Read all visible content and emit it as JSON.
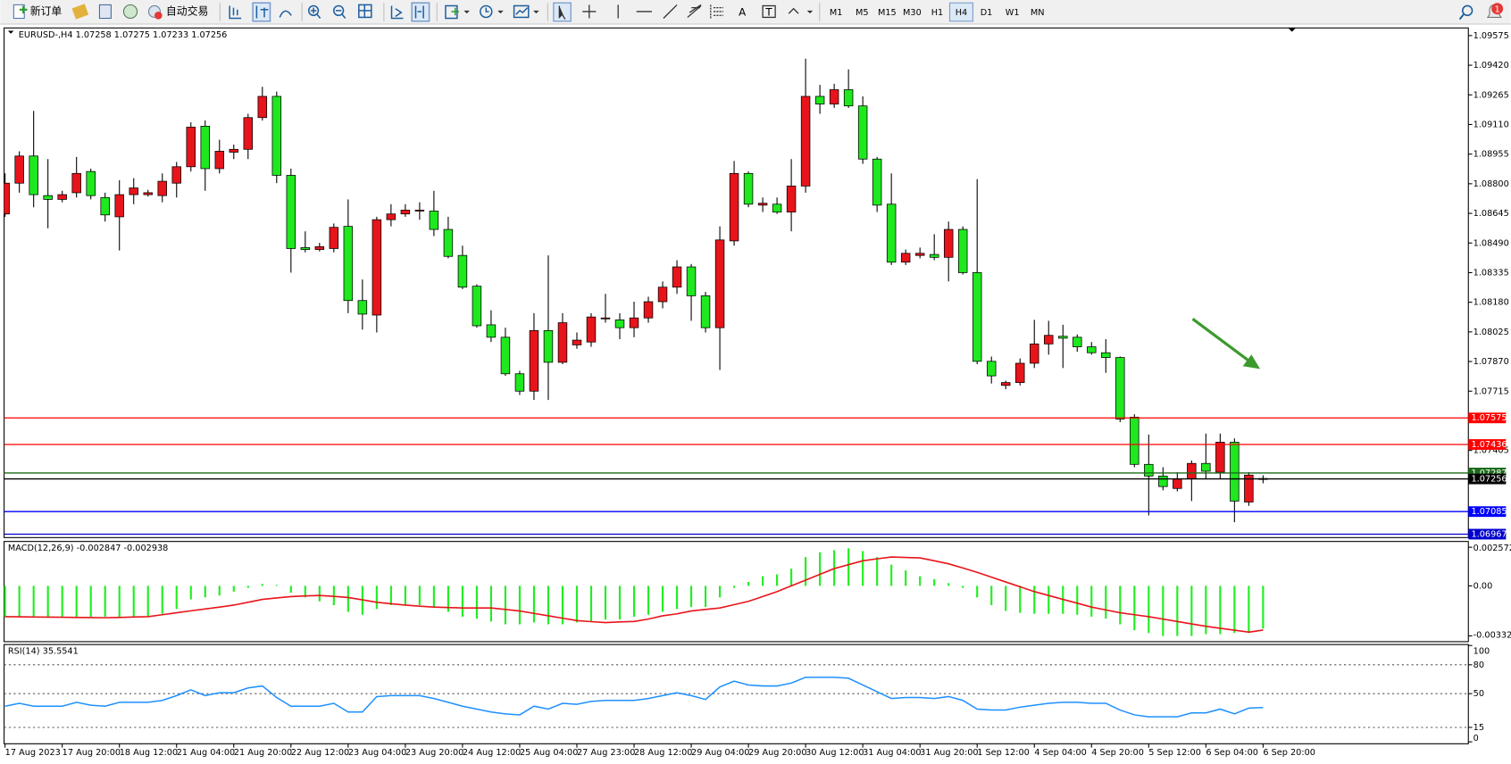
{
  "toolbar": {
    "buttons": [
      "新订单",
      "自动交易"
    ],
    "timeframes": [
      "M1",
      "M5",
      "M15",
      "M30",
      "H1",
      "H4",
      "D1",
      "W1",
      "MN"
    ],
    "active_timeframe": 5,
    "notifications": 1
  },
  "chart_data": [
    {
      "type": "candlestick",
      "title": "EURUSD-,H4  1.07258 1.07275 1.07233 1.07256",
      "categories": [
        "17 Aug 2023",
        null,
        null,
        null,
        "17 Aug 20:00",
        null,
        null,
        null,
        "18 Aug 12:00",
        null,
        null,
        null,
        "21 Aug 04:00",
        null,
        null,
        null,
        "21 Aug 20:00",
        null,
        null,
        null,
        "22 Aug 12:00",
        null,
        null,
        null,
        "23 Aug 04:00",
        null,
        null,
        null,
        "23 Aug 20:00",
        null,
        null,
        null,
        "24 Aug 12:00",
        null,
        null,
        null,
        "25 Aug 04:00",
        null,
        null,
        null,
        "27 Aug 23:00",
        null,
        null,
        null,
        "28 Aug 12:00",
        null,
        null,
        null,
        "29 Aug 04:00",
        null,
        null,
        null,
        "29 Aug 20:00",
        null,
        null,
        null,
        "30 Aug 12:00",
        null,
        null,
        null,
        "31 Aug 04:00",
        null,
        null,
        null,
        "31 Aug 20:00",
        null,
        null,
        null,
        "1 Sep 12:00",
        null,
        null,
        null,
        "4 Sep 04:00",
        null,
        null,
        null,
        "4 Sep 20:00",
        null,
        null,
        null,
        "5 Sep 12:00",
        null,
        null,
        null,
        "6 Sep 04:00",
        null,
        null,
        null,
        "6 Sep 20:00"
      ],
      "open": [
        1.08642,
        1.08803,
        1.08945,
        1.08738,
        1.08718,
        1.08753,
        1.08864,
        1.08728,
        1.08627,
        1.08743,
        1.08743,
        1.08738,
        1.08803,
        1.08889,
        1.09101,
        1.08879,
        1.08965,
        1.0898,
        1.09146,
        1.09257,
        1.08844,
        1.08466,
        1.08456,
        1.08461,
        1.08577,
        1.08189,
        1.08113,
        1.08612,
        1.08642,
        1.08657,
        1.08657,
        1.08561,
        1.08425,
        1.08264,
        1.08062,
        1.07997,
        1.07806,
        1.07715,
        1.08032,
        1.07866,
        1.07957,
        1.07972,
        1.08093,
        1.08088,
        1.08047,
        1.08098,
        1.08183,
        1.08259,
        1.08365,
        1.08214,
        1.08047,
        1.08501,
        1.08854,
        1.08688,
        1.08693,
        1.08652,
        1.08788,
        1.09257,
        1.09217,
        1.09292,
        1.09207,
        1.08929,
        1.08693,
        1.0839,
        1.08425,
        1.0843,
        1.08415,
        1.08561,
        1.08335,
        1.07871,
        1.07745,
        1.0776,
        1.07861,
        1.07962,
        1.08002,
        1.07997,
        1.07947,
        1.07916,
        1.07891,
        1.07579,
        1.07332,
        1.07271,
        1.07206,
        1.07256,
        1.07337,
        1.07291,
        1.07448,
        1.07135,
        1.07258
      ],
      "high": [
        1.08854,
        1.0897,
        1.09181,
        1.08929,
        1.08763,
        1.0894,
        1.08879,
        1.08753,
        1.08818,
        1.08829,
        1.08768,
        1.08854,
        1.08914,
        1.09121,
        1.09131,
        1.0903,
        1.09005,
        1.09166,
        1.09307,
        1.09282,
        1.08879,
        1.08551,
        1.08491,
        1.08592,
        1.08718,
        1.08299,
        1.08627,
        1.08693,
        1.08693,
        1.08703,
        1.08763,
        1.08627,
        1.08476,
        1.08274,
        1.08138,
        1.08047,
        1.07821,
        1.08123,
        1.08425,
        1.08123,
        1.08022,
        1.08123,
        1.08224,
        1.08123,
        1.08183,
        1.08209,
        1.08289,
        1.084,
        1.0838,
        1.08234,
        1.08577,
        1.08919,
        1.08864,
        1.08728,
        1.08728,
        1.08929,
        1.09454,
        1.09317,
        1.09323,
        1.09398,
        1.09257,
        1.0894,
        1.08854,
        1.08456,
        1.08466,
        1.08536,
        1.08602,
        1.08577,
        1.08824,
        1.07896,
        1.0777,
        1.07886,
        1.08088,
        1.08083,
        1.08062,
        1.08012,
        1.07972,
        1.07987,
        1.07896,
        1.07594,
        1.07488,
        1.07317,
        1.07291,
        1.07352,
        1.07493,
        1.07493,
        1.07468,
        1.07291,
        1.07275
      ],
      "low": [
        1.08627,
        1.08753,
        1.08677,
        1.08567,
        1.08703,
        1.08728,
        1.08718,
        1.08602,
        1.08451,
        1.08693,
        1.08733,
        1.08703,
        1.08728,
        1.08864,
        1.08763,
        1.08854,
        1.08929,
        1.08929,
        1.09131,
        1.08803,
        1.08335,
        1.08441,
        1.08446,
        1.08441,
        1.08123,
        1.08037,
        1.08022,
        1.08577,
        1.08627,
        1.08612,
        1.08526,
        1.0841,
        1.08249,
        1.08047,
        1.07972,
        1.07795,
        1.07695,
        1.07669,
        1.07669,
        1.07856,
        1.07937,
        1.07947,
        1.08073,
        1.07987,
        1.07997,
        1.08073,
        1.08148,
        1.08224,
        1.08083,
        1.08022,
        1.07826,
        1.08476,
        1.08677,
        1.08652,
        1.08642,
        1.08551,
        1.08753,
        1.09166,
        1.09197,
        1.09197,
        1.08904,
        1.08652,
        1.08375,
        1.08375,
        1.0841,
        1.084,
        1.08289,
        1.08325,
        1.07856,
        1.07755,
        1.07725,
        1.07745,
        1.07836,
        1.07906,
        1.07836,
        1.07921,
        1.07906,
        1.07811,
        1.07553,
        1.07317,
        1.07065,
        1.07196,
        1.07191,
        1.0714,
        1.07256,
        1.07256,
        1.07029,
        1.07115,
        1.07233
      ],
      "close": [
        1.08803,
        1.08945,
        1.08743,
        1.08718,
        1.08743,
        1.08854,
        1.08738,
        1.08637,
        1.08743,
        1.08778,
        1.08753,
        1.08813,
        1.08889,
        1.09096,
        1.08879,
        1.0897,
        1.0898,
        1.09146,
        1.09257,
        1.08844,
        1.08461,
        1.08456,
        1.08471,
        1.08572,
        1.08189,
        1.08118,
        1.08612,
        1.08642,
        1.08662,
        1.08662,
        1.08561,
        1.0842,
        1.08259,
        1.08057,
        1.07997,
        1.07806,
        1.07715,
        1.08032,
        1.07866,
        1.08073,
        1.07982,
        1.08103,
        1.08098,
        1.08047,
        1.08098,
        1.08183,
        1.08259,
        1.08365,
        1.08214,
        1.08047,
        1.08506,
        1.08854,
        1.08693,
        1.08698,
        1.08652,
        1.08788,
        1.09257,
        1.09217,
        1.09292,
        1.09207,
        1.08929,
        1.08688,
        1.0839,
        1.08436,
        1.08436,
        1.08415,
        1.08561,
        1.08335,
        1.07871,
        1.07795,
        1.0776,
        1.07861,
        1.07962,
        1.08007,
        1.07992,
        1.07947,
        1.07916,
        1.07891,
        1.07569,
        1.07332,
        1.07271,
        1.07216,
        1.07256,
        1.07337,
        1.07296,
        1.07448,
        1.0714,
        1.07276,
        1.07256
      ],
      "up_color": "#e8141b",
      "down_color": "#1fe81f",
      "ylim": [
        1.06954,
        1.09615
      ],
      "yticks": [
        1.09575,
        {
          "value": 1.0942,
          "label": "1.09420"
        },
        1.09265,
        {
          "value": 1.0911,
          "label": "1.09110"
        },
        1.08955,
        {
          "value": 1.088,
          "label": "1.08800"
        },
        1.08645,
        {
          "value": 1.0849,
          "label": "1.08490"
        },
        1.08335,
        {
          "value": 1.0818,
          "label": "1.08180"
        },
        1.08025,
        {
          "value": 1.0787,
          "label": "1.07870"
        },
        1.07715,
        1.07405
      ],
      "levels": [
        {
          "value": 1.07575,
          "color": "#ff0000"
        },
        {
          "value": 1.07436,
          "color": "#ff0000"
        },
        {
          "value": 1.07287,
          "color": "#1b6b1b"
        },
        {
          "value": 1.07256,
          "color": "#000000"
        },
        {
          "value": 1.07085,
          "color": "#0000ff"
        },
        {
          "value": 1.06967,
          "color": "#0000cc"
        }
      ]
    },
    {
      "type": "macd",
      "title": "MACD(12,26,9) -0.002847 -0.002938",
      "histogram": {
        "color": "#22ee22",
        "values": [
          -0.00205,
          -0.00205,
          -0.00205,
          -0.00205,
          -0.00205,
          -0.00205,
          -0.00205,
          -0.00205,
          -0.00205,
          -0.00205,
          -0.00205,
          -0.00186,
          -0.00154,
          -0.0009,
          -0.00077,
          -0.00064,
          -0.00038,
          -0.00013,
          0.00013,
          6e-05,
          -0.00045,
          -0.00077,
          -0.00103,
          -0.00128,
          -0.00173,
          -0.00192,
          -0.00154,
          -0.00128,
          -0.00128,
          -0.00128,
          -0.00141,
          -0.00173,
          -0.00205,
          -0.00218,
          -0.00237,
          -0.00256,
          -0.00256,
          -0.00244,
          -0.00256,
          -0.00256,
          -0.00244,
          -0.00237,
          -0.00224,
          -0.00224,
          -0.00205,
          -0.00192,
          -0.00173,
          -0.00154,
          -0.00141,
          -0.00141,
          -0.00077,
          -0.00013,
          0.00026,
          0.00064,
          0.00077,
          0.00115,
          0.00192,
          0.00224,
          0.00237,
          0.0025,
          0.00231,
          0.00192,
          0.00141,
          0.00103,
          0.00064,
          0.00045,
          0.00019,
          -0.00013,
          -0.00077,
          -0.00128,
          -0.00167,
          -0.00179,
          -0.00186,
          -0.00186,
          -0.00186,
          -0.00192,
          -0.00205,
          -0.00218,
          -0.00256,
          -0.00295,
          -0.00314,
          -0.00333,
          -0.00333,
          -0.00333,
          -0.00321,
          -0.00321,
          -0.00314,
          -0.00314,
          -0.002847
        ]
      },
      "signal": {
        "color": "#e8141b",
        "values": [
          -0.00205,
          -0.00206,
          -0.00207,
          -0.00208,
          -0.00209,
          -0.0021,
          -0.00211,
          -0.00212,
          -0.0021,
          -0.00207,
          -0.00205,
          -0.00192,
          -0.00179,
          -0.00166,
          -0.00154,
          -0.00141,
          -0.00128,
          -0.00109,
          -0.0009,
          -0.0008,
          -0.00071,
          -0.00067,
          -0.00064,
          -0.0007,
          -0.00077,
          -0.00093,
          -0.00109,
          -0.00119,
          -0.00128,
          -0.00135,
          -0.00141,
          -0.00144,
          -0.00147,
          -0.00147,
          -0.00147,
          -0.00157,
          -0.00167,
          -0.00183,
          -0.00199,
          -0.00215,
          -0.00231,
          -0.00238,
          -0.00244,
          -0.0024,
          -0.00237,
          -0.00221,
          -0.00199,
          -0.00186,
          -0.00167,
          -0.00157,
          -0.00147,
          -0.00125,
          -0.00103,
          -0.00071,
          -0.00038,
          0,
          0.00038,
          0.00077,
          0.00115,
          0.00141,
          0.00167,
          0.0018,
          0.00192,
          0.00189,
          0.00186,
          0.00167,
          0.00147,
          0.00119,
          0.0009,
          0.00058,
          0.00026,
          -6e-05,
          -0.00038,
          -0.00064,
          -0.0009,
          -0.00115,
          -0.00141,
          -0.0016,
          -0.00179,
          -0.00192,
          -0.00205,
          -0.00221,
          -0.00237,
          -0.00253,
          -0.00269,
          -0.00282,
          -0.00295,
          -0.00308,
          -0.002938
        ]
      },
      "ylim": [
        -0.003647,
        0.002893
      ],
      "yticks": [
        0.002572,
        {
          "value": 0,
          "label": "0.00"
        },
        -0.003326
      ]
    },
    {
      "type": "line",
      "title": "RSI(14) 35.5541",
      "color": "#1e90ff",
      "values": [
        37,
        40,
        37,
        37,
        37,
        41,
        38,
        37,
        41,
        41,
        41,
        43,
        48,
        54,
        48,
        51,
        51,
        56,
        58,
        46,
        37,
        37,
        37,
        40,
        31,
        31,
        47,
        48,
        48,
        48,
        45,
        41,
        37,
        34,
        31,
        29,
        28,
        37,
        34,
        40,
        39,
        42,
        43,
        43,
        43,
        45,
        48,
        51,
        48,
        44,
        57,
        63,
        59,
        58,
        58,
        61,
        67,
        67,
        67,
        66,
        59,
        52,
        45,
        46,
        46,
        45,
        47,
        43,
        34,
        33,
        33,
        36,
        38,
        40,
        41,
        41,
        40,
        40,
        33,
        28,
        26,
        26,
        26,
        30,
        30,
        34,
        29,
        35,
        35.5541
      ],
      "ylim": [
        -2,
        100
      ],
      "yticks": [
        100,
        80,
        50,
        15,
        0
      ],
      "levels": [
        80,
        50,
        15
      ]
    }
  ]
}
